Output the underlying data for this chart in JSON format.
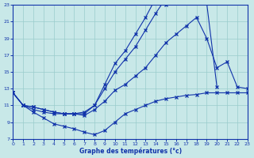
{
  "xlabel": "Graphe des températures (°c)",
  "background_color": "#c8e8e8",
  "grid_color": "#99cccc",
  "line_color": "#1133aa",
  "xlim": [
    0,
    23
  ],
  "ylim": [
    7,
    23
  ],
  "xticks": [
    0,
    1,
    2,
    3,
    4,
    5,
    6,
    7,
    8,
    9,
    10,
    11,
    12,
    13,
    14,
    15,
    16,
    17,
    18,
    19,
    20,
    21,
    22,
    23
  ],
  "yticks": [
    7,
    9,
    11,
    13,
    15,
    17,
    19,
    21,
    23
  ],
  "line1_x": [
    0,
    1,
    2,
    3,
    4,
    5,
    6,
    7,
    8,
    9,
    10,
    11,
    12,
    13,
    14,
    15,
    16,
    17
  ],
  "line1_y": [
    12.5,
    11.0,
    10.5,
    10.2,
    10.0,
    10.0,
    10.0,
    10.2,
    11.0,
    13.5,
    16.0,
    17.5,
    19.5,
    21.5,
    23.8,
    23.0,
    23.5,
    23.5
  ],
  "line2_x": [
    0,
    1,
    2,
    3,
    4,
    5,
    6,
    7,
    8,
    9,
    10,
    11,
    12,
    13,
    14,
    15,
    16,
    17,
    18,
    19,
    20
  ],
  "line2_y": [
    12.5,
    11.0,
    10.8,
    10.5,
    10.2,
    10.0,
    10.0,
    10.0,
    11.0,
    13.0,
    15.0,
    16.5,
    18.0,
    20.0,
    22.0,
    23.8,
    23.5,
    23.8,
    23.8,
    23.2,
    13.2
  ],
  "line3_x": [
    0,
    1,
    2,
    3,
    4,
    5,
    6,
    7,
    8,
    9,
    10,
    11,
    12,
    13,
    14,
    15,
    16,
    17,
    18,
    19,
    20,
    21,
    22,
    23
  ],
  "line3_y": [
    12.5,
    11.0,
    10.8,
    10.5,
    10.2,
    10.0,
    10.0,
    9.8,
    10.5,
    11.5,
    12.8,
    13.5,
    14.5,
    15.5,
    17.0,
    18.5,
    19.5,
    20.5,
    21.5,
    19.0,
    15.5,
    16.2,
    13.2,
    13.0
  ],
  "line4_x": [
    0,
    1,
    2,
    3,
    4,
    5,
    6,
    7,
    8,
    9,
    10,
    11,
    12,
    13,
    14,
    15,
    16,
    17,
    18,
    19,
    20,
    21,
    22,
    23
  ],
  "line4_y": [
    12.5,
    11.0,
    10.2,
    9.5,
    8.8,
    8.5,
    8.2,
    7.8,
    7.5,
    8.0,
    9.0,
    10.0,
    10.5,
    11.0,
    11.5,
    11.8,
    12.0,
    12.2,
    12.3,
    12.5,
    12.5,
    12.5,
    12.5,
    12.5
  ]
}
